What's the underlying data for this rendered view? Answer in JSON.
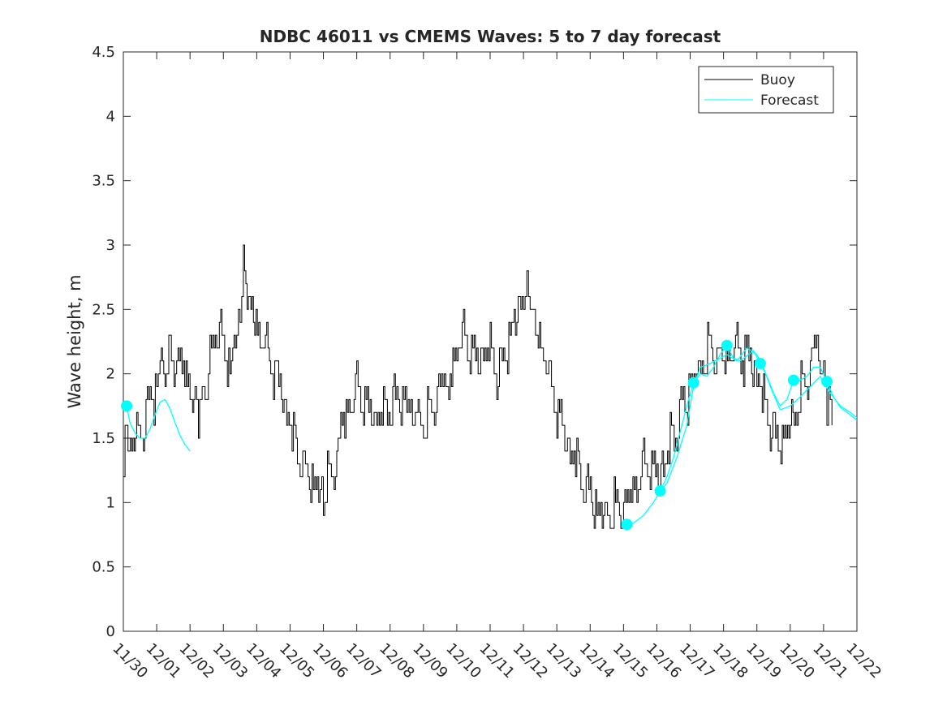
{
  "chart_data": {
    "type": "line",
    "title": "NDBC 46011 vs CMEMS Waves: 5 to 7 day forecast",
    "xlabel": "",
    "ylabel": "Wave height, m",
    "xlim": [
      0,
      22
    ],
    "ylim": [
      0,
      4.5
    ],
    "xticks": [
      0,
      1,
      2,
      3,
      4,
      5,
      6,
      7,
      8,
      9,
      10,
      11,
      12,
      13,
      14,
      15,
      16,
      17,
      18,
      19,
      20,
      21,
      22
    ],
    "xtick_labels": [
      "11/30",
      "12/01",
      "12/02",
      "12/03",
      "12/04",
      "12/05",
      "12/06",
      "12/07",
      "12/08",
      "12/09",
      "12/10",
      "12/11",
      "12/12",
      "12/13",
      "12/14",
      "12/15",
      "12/16",
      "12/17",
      "12/18",
      "12/19",
      "12/20",
      "12/21",
      "12/22"
    ],
    "yticks": [
      0,
      0.5,
      1,
      1.5,
      2,
      2.5,
      3,
      3.5,
      4,
      4.5
    ],
    "ytick_labels": [
      "0",
      "0.5",
      "1",
      "1.5",
      "2",
      "2.5",
      "3",
      "3.5",
      "4",
      "4.5"
    ],
    "grid": false,
    "legend": {
      "position": "top-right",
      "entries": [
        "Buoy",
        "Forecast"
      ]
    },
    "colors": {
      "buoy": "#000000",
      "forecast": "#00ffff",
      "axis": "#262626"
    },
    "series": [
      {
        "name": "Buoy",
        "note": "hourly significant wave height (approximate, read from figure)",
        "x": [
          0,
          0.1,
          0.25,
          0.4,
          0.6,
          0.8,
          1.0,
          1.1,
          1.25,
          1.4,
          1.6,
          1.8,
          2.0,
          2.15,
          2.25,
          2.4,
          2.5,
          2.6,
          2.8,
          3.0,
          3.2,
          3.4,
          3.5,
          3.6,
          3.75,
          3.9,
          4.1,
          4.3,
          4.5,
          4.7,
          4.9,
          5.1,
          5.3,
          5.5,
          5.7,
          5.9,
          6.0,
          6.2,
          6.4,
          6.6,
          6.8,
          7.0,
          7.2,
          7.4,
          7.6,
          7.8,
          8.0,
          8.2,
          8.5,
          8.8,
          9.0,
          9.2,
          9.5,
          9.8,
          10.0,
          10.2,
          10.4,
          10.6,
          10.8,
          11.0,
          11.2,
          11.4,
          11.6,
          11.8,
          12.0,
          12.1,
          12.2,
          12.4,
          12.6,
          12.8,
          13.0,
          13.2,
          13.4,
          13.6,
          13.8,
          14.0,
          14.2,
          14.4,
          14.6,
          14.8,
          15.0,
          15.2,
          15.4,
          15.6,
          15.8,
          16.0,
          16.2,
          16.4,
          16.6,
          16.8,
          17.0,
          17.2,
          17.4,
          17.6,
          17.8,
          18.0,
          18.2,
          18.4,
          18.6,
          18.8,
          19.0,
          19.2,
          19.4,
          19.6,
          19.8,
          20.0,
          20.2,
          20.4,
          20.6,
          20.8,
          20.9,
          21.0,
          21.1,
          21.2,
          21.3
        ],
        "y": [
          1.4,
          1.5,
          1.45,
          1.5,
          1.6,
          1.8,
          1.9,
          2.1,
          2.0,
          2.15,
          2.1,
          2.05,
          1.9,
          1.75,
          1.7,
          1.8,
          1.9,
          2.1,
          2.4,
          2.2,
          2.05,
          2.3,
          2.5,
          2.9,
          2.6,
          2.4,
          2.3,
          2.2,
          2.05,
          1.9,
          1.7,
          1.5,
          1.35,
          1.2,
          1.15,
          1.1,
          1.05,
          1.2,
          1.4,
          1.65,
          1.75,
          1.9,
          1.8,
          1.7,
          1.65,
          1.7,
          1.75,
          1.8,
          1.75,
          1.7,
          1.6,
          1.7,
          1.85,
          2.0,
          2.2,
          2.3,
          2.2,
          2.1,
          2.15,
          2.2,
          2.0,
          2.1,
          2.3,
          2.45,
          2.6,
          2.7,
          2.5,
          2.3,
          2.15,
          1.95,
          1.7,
          1.55,
          1.4,
          1.3,
          1.15,
          1.05,
          0.95,
          0.9,
          0.92,
          0.95,
          0.95,
          1.05,
          1.15,
          1.3,
          1.3,
          1.2,
          1.3,
          1.45,
          1.6,
          1.75,
          1.9,
          2.0,
          2.1,
          2.2,
          2.15,
          2.1,
          2.15,
          2.2,
          2.15,
          2.1,
          2.0,
          1.8,
          1.6,
          1.45,
          1.5,
          1.6,
          1.75,
          1.9,
          2.1,
          2.25,
          2.1,
          1.95,
          1.85,
          1.75,
          1.7
        ]
      },
      {
        "name": "Forecast",
        "segments": [
          {
            "x": [
              0.1,
              0.2,
              0.35,
              0.5,
              0.65,
              0.8,
              0.95,
              1.1,
              1.25,
              1.4,
              1.55,
              1.7,
              1.85,
              2.0
            ],
            "y": [
              1.75,
              1.62,
              1.54,
              1.5,
              1.5,
              1.57,
              1.68,
              1.78,
              1.8,
              1.73,
              1.62,
              1.52,
              1.45,
              1.4
            ]
          },
          {
            "x": [
              15.1,
              15.3,
              15.6,
              15.9,
              16.1,
              16.3,
              16.5,
              16.7,
              16.9,
              17.1,
              17.3,
              17.5,
              17.7,
              17.9,
              18.1,
              18.3,
              18.5,
              18.7,
              18.9,
              19.1,
              19.3,
              19.5,
              19.7,
              19.9,
              20.1,
              20.3,
              20.5,
              20.7,
              20.9,
              21.1,
              21.3,
              21.5,
              21.7,
              22.0
            ],
            "y": [
              0.83,
              0.84,
              0.9,
              1.0,
              1.09,
              1.2,
              1.35,
              1.55,
              1.75,
              1.93,
              2.0,
              1.98,
              2.05,
              2.15,
              2.22,
              2.12,
              2.1,
              2.14,
              2.18,
              2.08,
              1.98,
              1.85,
              1.75,
              1.8,
              1.95,
              1.95,
              1.98,
              2.05,
              2.05,
              1.94,
              1.82,
              1.74,
              1.7,
              1.64
            ]
          },
          {
            "x": [
              16.0,
              16.3,
              16.6,
              16.9,
              17.1,
              17.3,
              17.6,
              17.9,
              18.1,
              18.4,
              18.7,
              19.0,
              19.2,
              19.4,
              19.7,
              20.0,
              20.3,
              20.6,
              20.9,
              21.2,
              21.5,
              21.8,
              22.0
            ],
            "y": [
              1.05,
              1.15,
              1.35,
              1.6,
              1.9,
              2.05,
              2.08,
              2.12,
              2.15,
              2.1,
              2.2,
              2.15,
              2.05,
              1.9,
              1.72,
              1.75,
              1.82,
              1.9,
              1.98,
              1.85,
              1.75,
              1.7,
              1.66
            ]
          }
        ],
        "markers": {
          "x": [
            0.1,
            15.1,
            16.1,
            17.1,
            18.1,
            19.1,
            20.1,
            21.1
          ],
          "y": [
            1.75,
            0.83,
            1.09,
            1.93,
            2.22,
            2.08,
            1.95,
            1.94
          ]
        }
      }
    ]
  }
}
